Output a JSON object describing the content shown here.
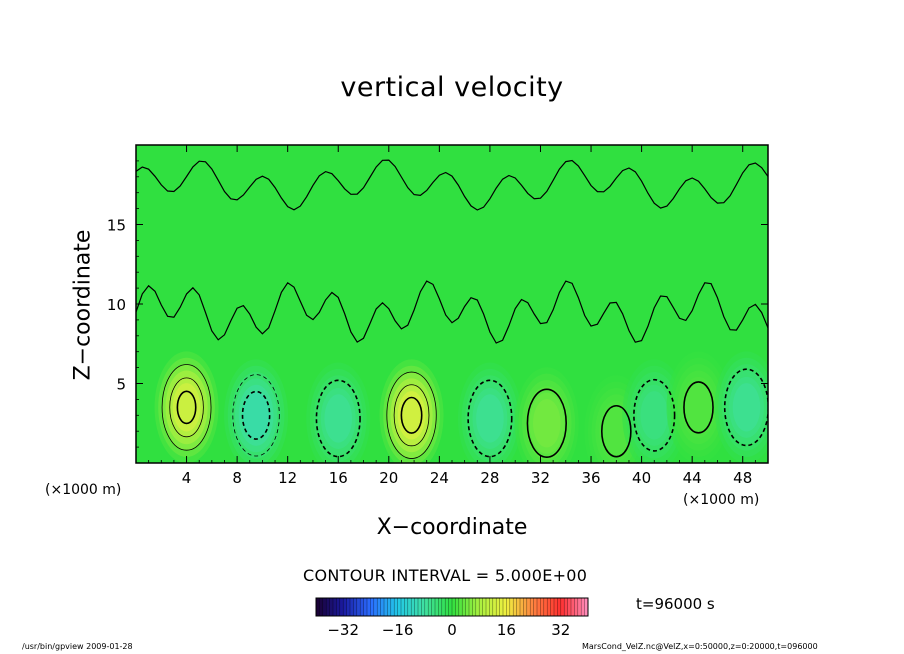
{
  "chart_data": {
    "type": "heatmap",
    "title": "vertical velocity",
    "xlabel": "X−coordinate",
    "ylabel": "Z−coordinate",
    "x_unit_label": "(×1000 m)",
    "xlim": [
      0,
      50
    ],
    "ylim": [
      0,
      20
    ],
    "x_ticks": [
      4,
      8,
      12,
      16,
      20,
      24,
      28,
      32,
      36,
      40,
      44,
      48
    ],
    "y_ticks": [
      5,
      10,
      15
    ],
    "contour_interval_label": "CONTOUR INTERVAL = 5.000E+00",
    "contour_interval": 5,
    "colorbar": {
      "min": -40,
      "max": 40,
      "ticks": [
        -32,
        -16,
        0,
        16,
        32
      ]
    },
    "colormap": [
      "#1a0030",
      "#1a1aa0",
      "#2b6cff",
      "#22c8e8",
      "#40e0a0",
      "#30e040",
      "#a8f040",
      "#f0f040",
      "#ff8040",
      "#ff3030",
      "#ff90c0"
    ],
    "field_pattern": [
      {
        "x": 4.0,
        "z": 3.5,
        "w": 16
      },
      {
        "x": 9.5,
        "z": 3.0,
        "w": -12
      },
      {
        "x": 16.0,
        "z": 2.8,
        "w": -9
      },
      {
        "x": 21.8,
        "z": 3.0,
        "w": 17
      },
      {
        "x": 28.0,
        "z": 2.8,
        "w": -9
      },
      {
        "x": 32.5,
        "z": 2.5,
        "w": 6
      },
      {
        "x": 38.0,
        "z": 2.0,
        "w": 3
      },
      {
        "x": 41.0,
        "z": 3.0,
        "w": -7
      },
      {
        "x": 44.5,
        "z": 3.5,
        "w": 3
      },
      {
        "x": 48.3,
        "z": 3.5,
        "w": -9
      }
    ]
  },
  "annotations": {
    "time": "t=96000 s",
    "footer_left": "/usr/bin/gpview  2009-01-28",
    "footer_right": "MarsCond_VelZ.nc@VelZ,x=0:50000,z=0:20000,t=096000"
  }
}
